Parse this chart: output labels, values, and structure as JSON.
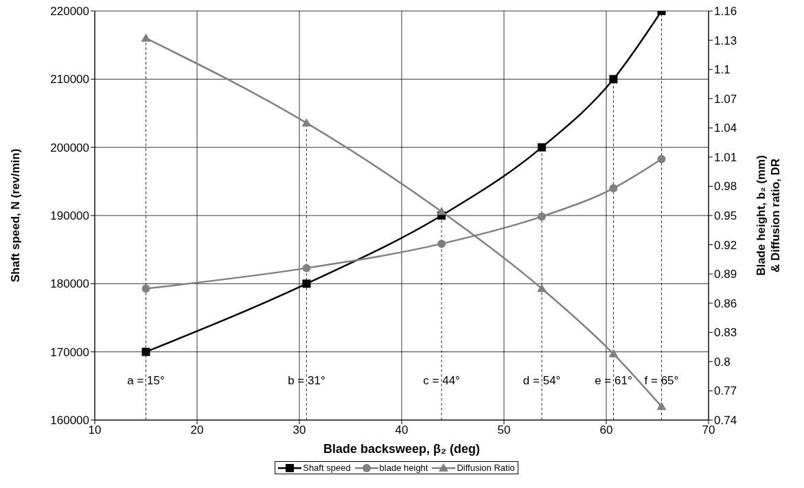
{
  "chart_data": {
    "type": "line",
    "xlabel": "Blade backsweep, β₂ (deg)",
    "ylabel": "Shaft speed, N (rev/min)",
    "y2label": "Blade height, b₂ (mm) & Diffusion ratio, DR",
    "x": [
      15,
      30.7,
      43.9,
      53.7,
      60.7,
      65.4
    ],
    "series": [
      {
        "name": "Shaft speed",
        "color": "#000000",
        "marker": "square",
        "values": [
          170000,
          180000,
          190000,
          200000,
          210000,
          220000
        ]
      },
      {
        "name": "blade height",
        "color": "#808080",
        "marker": "circle",
        "axis": "y2",
        "values": [
          0.875,
          0.896,
          0.921,
          0.949,
          0.978,
          1.008
        ]
      },
      {
        "name": "Diffusion Ratio",
        "color": "#808080",
        "marker": "triangle",
        "axis": "y2",
        "values": [
          1.132,
          1.045,
          0.954,
          0.875,
          0.808,
          0.754
        ]
      }
    ],
    "xlim": [
      10,
      70
    ],
    "xticks": [
      10,
      20,
      30,
      40,
      50,
      60,
      70
    ],
    "ylim": [
      160000,
      220000
    ],
    "yticks": [
      160000,
      170000,
      180000,
      190000,
      200000,
      210000,
      220000
    ],
    "y2lim": [
      0.74,
      1.16
    ],
    "y2ticks": [
      0.74,
      0.77,
      0.8,
      0.83,
      0.86,
      0.89,
      0.92,
      0.95,
      0.98,
      1.01,
      1.04,
      {
        "value": 1.07,
        "label": "1.07"
      },
      1.1,
      1.13,
      1.16
    ],
    "ref_lines": [
      {
        "axis": "x",
        "value": 15,
        "label": "a = 15°",
        "line_style": "dashed"
      },
      {
        "axis": "x",
        "value": 30.7,
        "label": "b = 31°",
        "line_style": "dashed"
      },
      {
        "axis": "x",
        "value": 43.9,
        "label": "c = 44°",
        "line_style": "dashed"
      },
      {
        "axis": "x",
        "value": 53.7,
        "label": "d = 54°",
        "line_style": "dashed"
      },
      {
        "axis": "x",
        "value": 60.7,
        "label": "e = 61°",
        "line_style": "dashed"
      },
      {
        "axis": "x",
        "value": 65.4,
        "label": "f = 65°",
        "line_style": "dashed"
      }
    ],
    "grid": true,
    "legend": "bottom",
    "line_style": "solid"
  }
}
